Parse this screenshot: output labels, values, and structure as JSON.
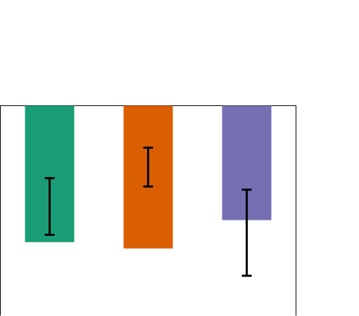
{
  "chart_data": {
    "type": "bar",
    "orientation": "vertical",
    "y_axis": "inverted",
    "categories": [
      "",
      "",
      ""
    ],
    "series": [
      {
        "values": [
          6.5,
          6.8,
          5.45
        ],
        "error_low": [
          3.45,
          2.0,
          4.0
        ],
        "error_high": [
          6.15,
          3.85,
          8.1
        ],
        "colors": [
          "#1b9e77",
          "#d95f02",
          "#7570b3"
        ]
      }
    ],
    "ylim": [
      10,
      0
    ],
    "grid": false,
    "legend": "none",
    "title": "",
    "xlabel": "",
    "ylabel": ""
  }
}
